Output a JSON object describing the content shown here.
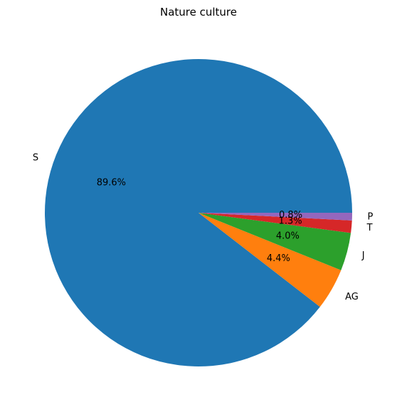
{
  "chart_data": {
    "type": "pie",
    "title": "Nature culture",
    "start_angle_deg": 0,
    "direction": "counterclockwise",
    "slices": [
      {
        "label": "S",
        "value": 89.6,
        "pct_label": "89.6%",
        "color": "#1f77b4"
      },
      {
        "label": "AG",
        "value": 4.4,
        "pct_label": "4.4%",
        "color": "#ff7f0e"
      },
      {
        "label": "J",
        "value": 4.0,
        "pct_label": "4.0%",
        "color": "#2ca02c"
      },
      {
        "label": "T",
        "value": 1.3,
        "pct_label": "1.3%",
        "color": "#d62728"
      },
      {
        "label": "P",
        "value": 0.8,
        "pct_label": "0.8%",
        "color": "#9467bd"
      }
    ]
  }
}
